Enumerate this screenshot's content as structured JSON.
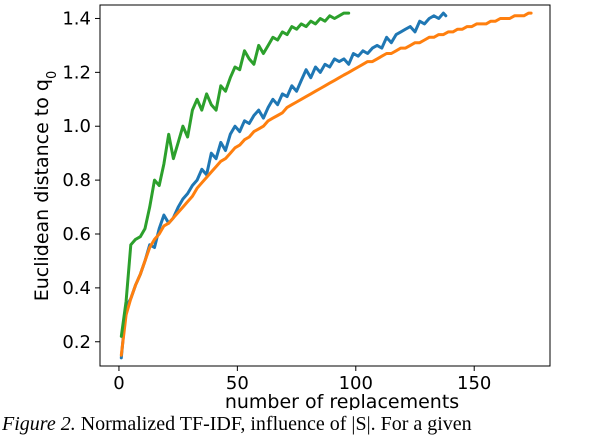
{
  "chart_data": {
    "type": "line",
    "title": "",
    "xlabel": "number of replacements",
    "ylabel": "Euclidean distance to q",
    "ylabel_subscript": "0",
    "xlim": [
      -8,
      182
    ],
    "ylim": [
      0.11,
      1.45
    ],
    "xticks": [
      0,
      50,
      100,
      150
    ],
    "yticks": [
      0.2,
      0.4,
      0.6,
      0.8,
      1.0,
      1.2,
      1.4
    ],
    "ytick_labels": [
      "0.2",
      "0.4",
      "0.6",
      "0.8",
      "1.0",
      "1.2",
      "1.4"
    ],
    "grid": false,
    "legend": "none",
    "series": [
      {
        "color": "#1f77b4",
        "x": [
          1,
          3,
          5,
          7,
          9,
          11,
          13,
          15,
          17,
          19,
          21,
          23,
          25,
          27,
          29,
          31,
          33,
          35,
          37,
          39,
          41,
          43,
          45,
          47,
          49,
          51,
          53,
          55,
          57,
          59,
          61,
          63,
          65,
          67,
          69,
          71,
          73,
          75,
          77,
          79,
          81,
          83,
          85,
          87,
          89,
          91,
          93,
          95,
          97,
          99,
          101,
          103,
          105,
          107,
          109,
          111,
          113,
          115,
          117,
          119,
          121,
          123,
          125,
          127,
          129,
          131,
          133,
          135,
          137,
          138
        ],
        "y": [
          0.14,
          0.33,
          0.36,
          0.41,
          0.45,
          0.5,
          0.56,
          0.55,
          0.62,
          0.67,
          0.64,
          0.66,
          0.7,
          0.73,
          0.75,
          0.78,
          0.8,
          0.84,
          0.82,
          0.9,
          0.88,
          0.94,
          0.91,
          0.97,
          1.0,
          0.98,
          1.02,
          1.01,
          1.04,
          1.06,
          1.03,
          1.07,
          1.1,
          1.08,
          1.12,
          1.11,
          1.15,
          1.13,
          1.17,
          1.21,
          1.18,
          1.22,
          1.2,
          1.23,
          1.22,
          1.25,
          1.24,
          1.25,
          1.23,
          1.27,
          1.26,
          1.28,
          1.27,
          1.29,
          1.3,
          1.29,
          1.33,
          1.31,
          1.34,
          1.35,
          1.36,
          1.37,
          1.35,
          1.39,
          1.38,
          1.4,
          1.41,
          1.4,
          1.42,
          1.41
        ]
      },
      {
        "color": "#ff7f0e",
        "x": [
          1,
          3,
          5,
          7,
          9,
          11,
          13,
          15,
          17,
          19,
          21,
          23,
          25,
          27,
          29,
          31,
          33,
          35,
          37,
          39,
          41,
          43,
          45,
          47,
          49,
          51,
          53,
          55,
          57,
          59,
          61,
          63,
          65,
          67,
          69,
          71,
          73,
          75,
          77,
          79,
          81,
          83,
          85,
          87,
          89,
          91,
          93,
          95,
          97,
          99,
          101,
          103,
          105,
          107,
          109,
          111,
          113,
          115,
          117,
          119,
          121,
          123,
          125,
          127,
          129,
          131,
          133,
          135,
          137,
          139,
          141,
          143,
          145,
          147,
          149,
          151,
          153,
          155,
          157,
          159,
          161,
          163,
          165,
          167,
          169,
          171,
          173,
          174
        ],
        "y": [
          0.15,
          0.3,
          0.36,
          0.41,
          0.45,
          0.5,
          0.55,
          0.58,
          0.6,
          0.63,
          0.64,
          0.66,
          0.68,
          0.7,
          0.72,
          0.74,
          0.77,
          0.79,
          0.81,
          0.83,
          0.85,
          0.87,
          0.88,
          0.9,
          0.92,
          0.93,
          0.95,
          0.96,
          0.98,
          0.99,
          1.0,
          1.02,
          1.03,
          1.04,
          1.05,
          1.07,
          1.08,
          1.09,
          1.1,
          1.11,
          1.12,
          1.13,
          1.14,
          1.15,
          1.16,
          1.17,
          1.18,
          1.19,
          1.2,
          1.21,
          1.22,
          1.23,
          1.24,
          1.24,
          1.25,
          1.26,
          1.27,
          1.27,
          1.28,
          1.29,
          1.29,
          1.3,
          1.31,
          1.31,
          1.32,
          1.33,
          1.33,
          1.34,
          1.34,
          1.35,
          1.35,
          1.36,
          1.36,
          1.37,
          1.37,
          1.38,
          1.38,
          1.38,
          1.39,
          1.39,
          1.4,
          1.4,
          1.4,
          1.41,
          1.41,
          1.41,
          1.42,
          1.42
        ]
      },
      {
        "color": "#2ca02c",
        "x": [
          1,
          3,
          5,
          7,
          9,
          11,
          13,
          15,
          17,
          19,
          21,
          23,
          25,
          27,
          29,
          31,
          33,
          35,
          37,
          39,
          41,
          43,
          45,
          47,
          49,
          51,
          53,
          55,
          57,
          59,
          61,
          63,
          65,
          67,
          69,
          71,
          73,
          75,
          77,
          79,
          81,
          83,
          85,
          87,
          89,
          91,
          93,
          95,
          97
        ],
        "y": [
          0.22,
          0.35,
          0.56,
          0.58,
          0.59,
          0.62,
          0.7,
          0.8,
          0.78,
          0.86,
          0.97,
          0.88,
          0.94,
          1.0,
          0.96,
          1.06,
          1.1,
          1.06,
          1.12,
          1.08,
          1.06,
          1.15,
          1.13,
          1.18,
          1.22,
          1.21,
          1.28,
          1.25,
          1.23,
          1.3,
          1.27,
          1.3,
          1.33,
          1.32,
          1.35,
          1.34,
          1.37,
          1.36,
          1.38,
          1.37,
          1.39,
          1.38,
          1.4,
          1.39,
          1.41,
          1.4,
          1.41,
          1.42,
          1.42
        ]
      }
    ]
  },
  "caption": {
    "lead": "Figure 2.",
    "text": "Normalized TF-IDF, influence of |S|. For a given"
  }
}
